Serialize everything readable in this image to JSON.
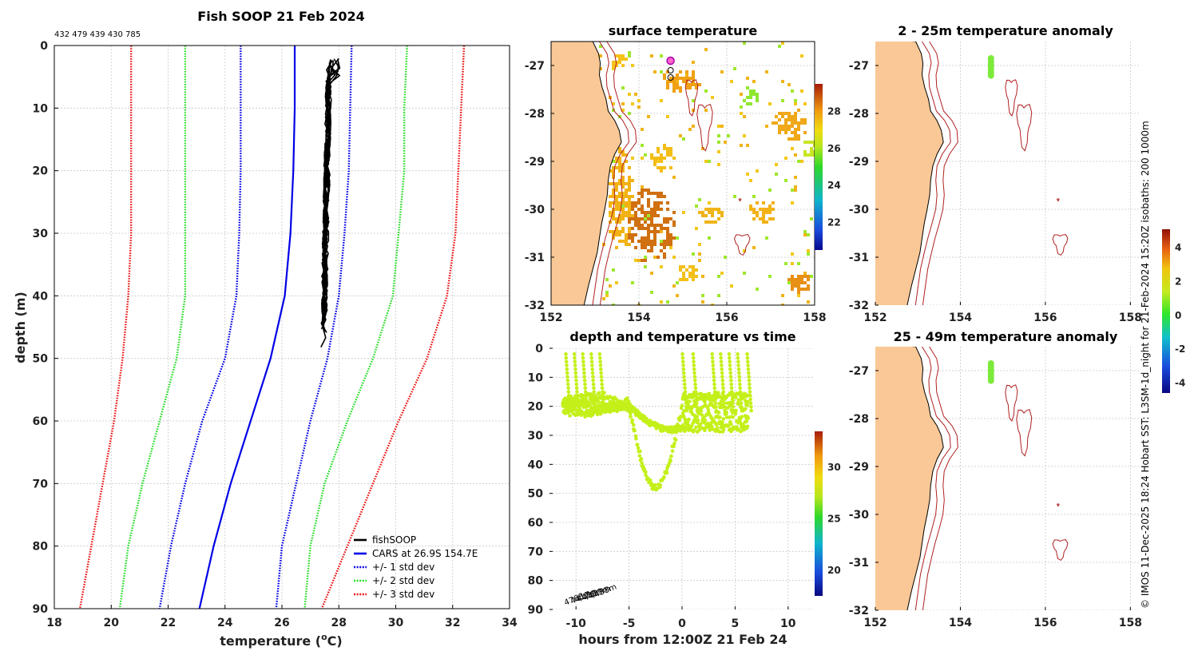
{
  "chart_data": [
    {
      "type": "line",
      "title": "Fish SOOP 21 Feb 2024",
      "subtitle": "432 479 439 430 785",
      "xlabel": "temperature (",
      "xlabel_sup": "o",
      "xlabel_end": "C)",
      "ylabel": "depth (m)",
      "xlim": [
        18,
        34
      ],
      "ylim": [
        90,
        0
      ],
      "xticks": [
        18,
        20,
        22,
        24,
        26,
        28,
        30,
        32,
        34
      ],
      "yticks": [
        0,
        10,
        20,
        30,
        40,
        50,
        60,
        70,
        80,
        90
      ],
      "legend": [
        "fishSOOP",
        "CARS at 26.9S 154.7E",
        "+/- 1 std dev",
        "+/- 2 std dev",
        "+/- 3 std dev"
      ],
      "depth": [
        0,
        10,
        20,
        30,
        40,
        50,
        60,
        70,
        80,
        90
      ],
      "cars_mean": [
        26.45,
        26.45,
        26.4,
        26.3,
        26.1,
        25.6,
        24.9,
        24.2,
        23.6,
        23.1
      ],
      "std1_low": [
        24.55,
        24.55,
        24.55,
        24.5,
        24.4,
        24.0,
        23.2,
        22.6,
        22.1,
        21.7
      ],
      "std1_high": [
        28.45,
        28.4,
        28.35,
        28.2,
        28.0,
        27.6,
        27.0,
        26.5,
        26.0,
        25.8
      ],
      "std2_low": [
        22.6,
        22.6,
        22.6,
        22.6,
        22.6,
        22.3,
        21.7,
        21.1,
        20.6,
        20.3
      ],
      "std2_high": [
        30.4,
        30.3,
        30.3,
        30.1,
        29.9,
        29.2,
        28.3,
        27.5,
        27.0,
        26.8
      ],
      "std3_low": [
        20.7,
        20.7,
        20.7,
        20.7,
        20.6,
        20.4,
        20.1,
        19.7,
        19.3,
        18.9
      ],
      "std3_high": [
        32.4,
        32.3,
        32.2,
        32.1,
        31.8,
        31.1,
        30.1,
        29.2,
        28.3,
        27.4
      ],
      "fishsoop_depth_range": [
        2,
        49
      ],
      "fishsoop_temp_range": [
        27.4,
        27.9
      ]
    },
    {
      "type": "heatmap",
      "title": "surface temperature",
      "xlim": [
        152,
        158
      ],
      "ylim": [
        -32,
        -26.5
      ],
      "xticks": [
        152,
        154,
        156,
        158
      ],
      "yticks": [
        -27,
        -28,
        -29,
        -30,
        -31,
        -32
      ],
      "colorbar_ticks": [
        22,
        24,
        26,
        28
      ],
      "colorbar_range": [
        20.5,
        29.5
      ]
    },
    {
      "type": "scatter",
      "title": "depth and temperature vs time",
      "xlabel": "hours from 12:00Z 21 Feb 24",
      "xlim": [
        -12.5,
        12.5
      ],
      "ylim": [
        90,
        0
      ],
      "xticks": [
        -10,
        -5,
        0,
        5,
        10
      ],
      "yticks": [
        0,
        10,
        20,
        30,
        40,
        50,
        60,
        70,
        80,
        90
      ],
      "colorbar_ticks": [
        20,
        25,
        30
      ],
      "colorbar_range": [
        17.5,
        33.5
      ],
      "annotations": [
        "4768m",
        "4417m",
        "4419m",
        "4419m",
        "4458m"
      ]
    },
    {
      "type": "heatmap",
      "title": "2 - 25m temperature anomaly",
      "xlim": [
        152,
        158.2
      ],
      "ylim": [
        -32,
        -26.5
      ],
      "xticks": [
        152,
        154,
        156,
        158
      ],
      "yticks": [
        -27,
        -28,
        -29,
        -30,
        -31,
        -32
      ]
    },
    {
      "type": "heatmap",
      "title": "25 - 49m temperature anomaly",
      "xlim": [
        152,
        158.2
      ],
      "ylim": [
        -32,
        -26.5
      ],
      "xticks": [
        152,
        154,
        156,
        158
      ],
      "yticks": [
        -27,
        -28,
        -29,
        -30,
        -31,
        -32
      ]
    }
  ],
  "anomaly_colorbar": {
    "ticks": [
      4,
      2,
      0,
      -2,
      -4
    ],
    "range": [
      -4.6,
      5.1
    ]
  },
  "side_note": "© IMOS 11-Dec-2025 18:24 Hobart SST: L3SM-1d_night for 21-Feb-2024 15:20Z isobaths: 200  1000m",
  "colors": {
    "fishsoop": "#000000",
    "cars": "#0000e6",
    "std1": "#0000e6",
    "std2": "#22dd22",
    "std3": "#ee1111",
    "land": "#f9c896",
    "isobath": "#b02020",
    "scatter": "#c4f01a"
  }
}
